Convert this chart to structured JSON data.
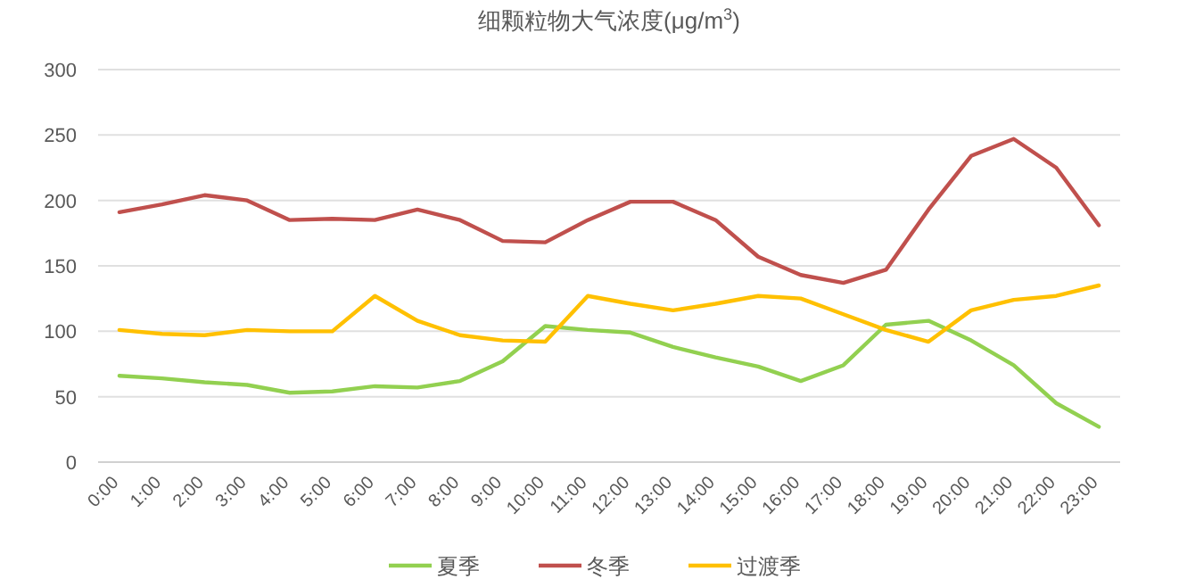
{
  "chart_data": {
    "type": "line",
    "title": "细颗粒物大气浓度(μg/m$^{3}$)",
    "categories": [
      "0:00",
      "1:00",
      "2:00",
      "3:00",
      "4:00",
      "5:00",
      "6:00",
      "7:00",
      "8:00",
      "9:00",
      "10:00",
      "11:00",
      "12:00",
      "13:00",
      "14:00",
      "15:00",
      "16:00",
      "17:00",
      "18:00",
      "19:00",
      "20:00",
      "21:00",
      "22:00",
      "23:00"
    ],
    "series": [
      {
        "name": "夏季",
        "color": "#92d050",
        "values": [
          66,
          64,
          61,
          59,
          53,
          54,
          58,
          57,
          62,
          77,
          104,
          101,
          99,
          88,
          80,
          73,
          62,
          74,
          105,
          108,
          93,
          74,
          45,
          27
        ]
      },
      {
        "name": "冬季",
        "color": "#c0504d",
        "values": [
          191,
          197,
          204,
          200,
          185,
          186,
          185,
          193,
          185,
          169,
          168,
          185,
          199,
          199,
          185,
          157,
          143,
          137,
          147,
          193,
          234,
          247,
          225,
          181
        ]
      },
      {
        "name": "过渡季",
        "color": "#ffc000",
        "values": [
          101,
          98,
          97,
          101,
          100,
          100,
          127,
          108,
          97,
          93,
          92,
          127,
          121,
          116,
          121,
          127,
          125,
          113,
          101,
          92,
          116,
          124,
          127,
          135
        ]
      }
    ],
    "ylim": [
      0,
      300
    ],
    "yticks": [
      0,
      50,
      100,
      150,
      200,
      250,
      300
    ],
    "grid": "y",
    "legend": "bottom",
    "marker": "none",
    "line_style": "solid"
  }
}
